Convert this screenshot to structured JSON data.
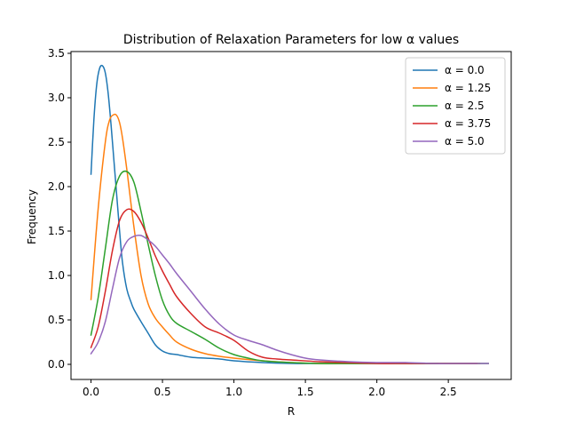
{
  "chart_data": {
    "type": "line",
    "title": "Distribution of Relaxation Parameters for low α values",
    "xlabel": "R",
    "ylabel": "Frequency",
    "xlim": [
      -0.14,
      2.94
    ],
    "ylim": [
      -0.17,
      3.52
    ],
    "xticks": [
      0.0,
      0.5,
      1.0,
      1.5,
      2.0,
      2.5
    ],
    "xtick_labels": [
      "0.0",
      "0.5",
      "1.0",
      "1.5",
      "2.0",
      "2.5"
    ],
    "yticks": [
      0.0,
      0.5,
      1.0,
      1.5,
      2.0,
      2.5,
      3.0,
      3.5
    ],
    "ytick_labels": [
      "0.0",
      "0.5",
      "1.0",
      "1.5",
      "2.0",
      "2.5",
      "3.0",
      "3.5"
    ],
    "grid": false,
    "legend_position": "top-right",
    "series": [
      {
        "name": "α = 0.0",
        "color": "#1f77b4",
        "x": [
          0.0,
          0.02,
          0.04,
          0.06,
          0.08,
          0.1,
          0.12,
          0.14,
          0.16,
          0.18,
          0.2,
          0.22,
          0.25,
          0.28,
          0.3,
          0.35,
          0.4,
          0.45,
          0.5,
          0.55,
          0.6,
          0.7,
          0.8,
          0.9,
          1.0,
          1.2,
          1.4,
          1.6,
          1.8,
          2.0,
          2.2,
          2.43
        ],
        "y": [
          2.14,
          2.75,
          3.15,
          3.33,
          3.36,
          3.28,
          3.05,
          2.7,
          2.3,
          1.9,
          1.5,
          1.15,
          0.85,
          0.7,
          0.62,
          0.48,
          0.35,
          0.22,
          0.15,
          0.12,
          0.11,
          0.08,
          0.07,
          0.06,
          0.04,
          0.02,
          0.01,
          0.01,
          0.01,
          0.01,
          0.01,
          0.01
        ]
      },
      {
        "name": "α = 1.25",
        "color": "#ff7f0e",
        "x": [
          0.0,
          0.05,
          0.1,
          0.13,
          0.16,
          0.18,
          0.2,
          0.22,
          0.25,
          0.3,
          0.35,
          0.4,
          0.45,
          0.5,
          0.55,
          0.6,
          0.7,
          0.8,
          0.9,
          1.0,
          1.2,
          1.4,
          1.6,
          1.8,
          2.0,
          2.2,
          2.4,
          2.6,
          2.72
        ],
        "y": [
          0.73,
          1.75,
          2.5,
          2.75,
          2.81,
          2.8,
          2.72,
          2.55,
          2.2,
          1.55,
          1.0,
          0.68,
          0.52,
          0.42,
          0.33,
          0.25,
          0.17,
          0.12,
          0.09,
          0.07,
          0.04,
          0.02,
          0.01,
          0.01,
          0.01,
          0.01,
          0.01,
          0.01,
          0.01
        ]
      },
      {
        "name": "α = 2.5",
        "color": "#2ca02c",
        "x": [
          0.0,
          0.05,
          0.1,
          0.15,
          0.2,
          0.25,
          0.3,
          0.35,
          0.4,
          0.45,
          0.5,
          0.55,
          0.6,
          0.7,
          0.8,
          0.9,
          1.0,
          1.1,
          1.2,
          1.4,
          1.6,
          1.8,
          2.0,
          2.2,
          2.4,
          2.6,
          2.78
        ],
        "y": [
          0.33,
          0.75,
          1.3,
          1.85,
          2.12,
          2.17,
          2.05,
          1.72,
          1.35,
          1.0,
          0.72,
          0.55,
          0.46,
          0.37,
          0.28,
          0.18,
          0.11,
          0.07,
          0.04,
          0.02,
          0.01,
          0.01,
          0.01,
          0.01,
          0.01,
          0.01,
          0.01
        ]
      },
      {
        "name": "α = 3.75",
        "color": "#d62728",
        "x": [
          0.0,
          0.05,
          0.1,
          0.15,
          0.2,
          0.25,
          0.3,
          0.35,
          0.4,
          0.45,
          0.5,
          0.55,
          0.6,
          0.7,
          0.8,
          0.9,
          1.0,
          1.1,
          1.2,
          1.3,
          1.4,
          1.6,
          1.8,
          2.0,
          2.2,
          2.4,
          2.6,
          2.7
        ],
        "y": [
          0.19,
          0.42,
          0.82,
          1.28,
          1.62,
          1.74,
          1.72,
          1.6,
          1.42,
          1.22,
          1.05,
          0.9,
          0.76,
          0.57,
          0.42,
          0.35,
          0.27,
          0.15,
          0.08,
          0.06,
          0.05,
          0.03,
          0.02,
          0.01,
          0.01,
          0.01,
          0.01,
          0.01
        ]
      },
      {
        "name": "α = 5.0",
        "color": "#9467bd",
        "x": [
          0.0,
          0.05,
          0.1,
          0.15,
          0.2,
          0.25,
          0.3,
          0.35,
          0.4,
          0.45,
          0.5,
          0.55,
          0.6,
          0.7,
          0.8,
          0.9,
          1.0,
          1.1,
          1.2,
          1.3,
          1.4,
          1.5,
          1.6,
          1.8,
          2.0,
          2.2,
          2.4,
          2.6,
          2.78
        ],
        "y": [
          0.12,
          0.25,
          0.48,
          0.85,
          1.2,
          1.38,
          1.44,
          1.45,
          1.4,
          1.33,
          1.23,
          1.13,
          1.02,
          0.82,
          0.62,
          0.45,
          0.33,
          0.27,
          0.22,
          0.16,
          0.11,
          0.07,
          0.05,
          0.03,
          0.02,
          0.02,
          0.01,
          0.01,
          0.01
        ]
      }
    ]
  }
}
